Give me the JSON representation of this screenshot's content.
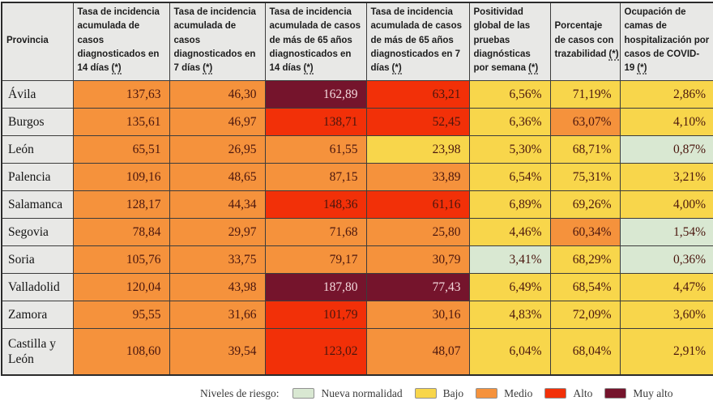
{
  "colors": {
    "nueva": "#d9e8d2",
    "bajo": "#f8d64b",
    "medio": "#f5923c",
    "alto": "#f23008",
    "muy_alto": "#75142c",
    "header_bg": "#e8e8e6",
    "text_dark": "#4a160e",
    "text_light": "#f2d7db"
  },
  "table": {
    "headers": [
      {
        "label": "Provincia",
        "fn": ""
      },
      {
        "label": "Tasa de incidencia acumulada de casos diagnosticados en 14 días",
        "fn": "(*)"
      },
      {
        "label": "Tasa de incidencia acumulada de casos diagnosticados en 7 días",
        "fn": "(*)"
      },
      {
        "label": "Tasa de incidencia acumulada de casos de más de 65 años diagnosticados en 14 días",
        "fn": "(*)"
      },
      {
        "label": "Tasa de incidencia acumulada de casos de más de 65 años diagnosticados en 7 días",
        "fn": "(*)"
      },
      {
        "label": "Positividad global de las pruebas diagnósticas por semana",
        "fn": "(*)"
      },
      {
        "label": "Porcentaje de casos con trazabilidad",
        "fn": "(*)"
      },
      {
        "label": "Ocupación de camas de hospitalización por casos de COVID-19",
        "fn": "(*)"
      }
    ],
    "rows": [
      {
        "province": "Ávila",
        "cells": [
          {
            "value": "137,63",
            "level": "medio"
          },
          {
            "value": "46,30",
            "level": "medio"
          },
          {
            "value": "162,89",
            "level": "muy_alto"
          },
          {
            "value": "63,21",
            "level": "alto"
          },
          {
            "value": "6,56%",
            "level": "bajo"
          },
          {
            "value": "71,19%",
            "level": "bajo"
          },
          {
            "value": "2,86%",
            "level": "bajo"
          }
        ]
      },
      {
        "province": "Burgos",
        "cells": [
          {
            "value": "135,61",
            "level": "medio"
          },
          {
            "value": "46,97",
            "level": "medio"
          },
          {
            "value": "138,71",
            "level": "alto"
          },
          {
            "value": "52,45",
            "level": "alto"
          },
          {
            "value": "6,36%",
            "level": "bajo"
          },
          {
            "value": "63,07%",
            "level": "medio"
          },
          {
            "value": "4,10%",
            "level": "bajo"
          }
        ]
      },
      {
        "province": "León",
        "cells": [
          {
            "value": "65,51",
            "level": "medio"
          },
          {
            "value": "26,95",
            "level": "medio"
          },
          {
            "value": "61,55",
            "level": "medio"
          },
          {
            "value": "23,98",
            "level": "bajo"
          },
          {
            "value": "5,30%",
            "level": "bajo"
          },
          {
            "value": "68,71%",
            "level": "bajo"
          },
          {
            "value": "0,87%",
            "level": "nueva"
          }
        ]
      },
      {
        "province": "Palencia",
        "cells": [
          {
            "value": "109,16",
            "level": "medio"
          },
          {
            "value": "48,65",
            "level": "medio"
          },
          {
            "value": "87,15",
            "level": "medio"
          },
          {
            "value": "33,89",
            "level": "medio"
          },
          {
            "value": "6,54%",
            "level": "bajo"
          },
          {
            "value": "75,31%",
            "level": "bajo"
          },
          {
            "value": "3,21%",
            "level": "bajo"
          }
        ]
      },
      {
        "province": "Salamanca",
        "cells": [
          {
            "value": "128,17",
            "level": "medio"
          },
          {
            "value": "44,34",
            "level": "medio"
          },
          {
            "value": "148,36",
            "level": "alto"
          },
          {
            "value": "61,16",
            "level": "alto"
          },
          {
            "value": "6,89%",
            "level": "bajo"
          },
          {
            "value": "69,26%",
            "level": "bajo"
          },
          {
            "value": "4,00%",
            "level": "bajo"
          }
        ]
      },
      {
        "province": "Segovia",
        "cells": [
          {
            "value": "78,84",
            "level": "medio"
          },
          {
            "value": "29,97",
            "level": "medio"
          },
          {
            "value": "71,68",
            "level": "medio"
          },
          {
            "value": "25,80",
            "level": "medio"
          },
          {
            "value": "4,46%",
            "level": "bajo"
          },
          {
            "value": "60,34%",
            "level": "medio"
          },
          {
            "value": "1,54%",
            "level": "nueva"
          }
        ]
      },
      {
        "province": "Soria",
        "cells": [
          {
            "value": "105,76",
            "level": "medio"
          },
          {
            "value": "33,75",
            "level": "medio"
          },
          {
            "value": "79,17",
            "level": "medio"
          },
          {
            "value": "30,79",
            "level": "medio"
          },
          {
            "value": "3,41%",
            "level": "nueva"
          },
          {
            "value": "68,29%",
            "level": "bajo"
          },
          {
            "value": "0,36%",
            "level": "nueva"
          }
        ]
      },
      {
        "province": "Valladolid",
        "cells": [
          {
            "value": "120,04",
            "level": "medio"
          },
          {
            "value": "43,98",
            "level": "medio"
          },
          {
            "value": "187,80",
            "level": "muy_alto"
          },
          {
            "value": "77,43",
            "level": "muy_alto"
          },
          {
            "value": "6,49%",
            "level": "bajo"
          },
          {
            "value": "68,54%",
            "level": "bajo"
          },
          {
            "value": "4,47%",
            "level": "bajo"
          }
        ]
      },
      {
        "province": "Zamora",
        "cells": [
          {
            "value": "95,55",
            "level": "medio"
          },
          {
            "value": "31,66",
            "level": "medio"
          },
          {
            "value": "101,79",
            "level": "alto"
          },
          {
            "value": "30,16",
            "level": "medio"
          },
          {
            "value": "4,83%",
            "level": "bajo"
          },
          {
            "value": "72,09%",
            "level": "bajo"
          },
          {
            "value": "3,60%",
            "level": "bajo"
          }
        ]
      },
      {
        "province": "Castilla y León",
        "cells": [
          {
            "value": "108,60",
            "level": "medio"
          },
          {
            "value": "39,54",
            "level": "medio"
          },
          {
            "value": "123,02",
            "level": "alto"
          },
          {
            "value": "48,07",
            "level": "medio"
          },
          {
            "value": "6,04%",
            "level": "bajo"
          },
          {
            "value": "68,04%",
            "level": "bajo"
          },
          {
            "value": "2,91%",
            "level": "bajo"
          }
        ]
      }
    ]
  },
  "legend": {
    "title": "Niveles de riesgo:",
    "items": [
      {
        "label": "Nueva normalidad",
        "level": "nueva"
      },
      {
        "label": "Bajo",
        "level": "bajo"
      },
      {
        "label": "Medio",
        "level": "medio"
      },
      {
        "label": "Alto",
        "level": "alto"
      },
      {
        "label": "Muy alto",
        "level": "muy_alto"
      }
    ]
  },
  "chart_data": {
    "type": "table",
    "columns": [
      "Provincia",
      "Tasa de incidencia acumulada de casos diagnosticados en 14 días (*)",
      "Tasa de incidencia acumulada de casos diagnosticados en 7 días (*)",
      "Tasa de incidencia acumulada de casos de más de 65 años diagnosticados en 14 días (*)",
      "Tasa de incidencia acumulada de casos de más de 65 años diagnosticados en 7 días (*)",
      "Positividad global de las pruebas diagnósticas por semana (*)",
      "Porcentaje de casos con trazabilidad (*)",
      "Ocupación de camas de hospitalización por casos de COVID-19 (*)"
    ],
    "rows": [
      [
        "Ávila",
        "137,63",
        "46,30",
        "162,89",
        "63,21",
        "6,56%",
        "71,19%",
        "2,86%"
      ],
      [
        "Burgos",
        "135,61",
        "46,97",
        "138,71",
        "52,45",
        "6,36%",
        "63,07%",
        "4,10%"
      ],
      [
        "León",
        "65,51",
        "26,95",
        "61,55",
        "23,98",
        "5,30%",
        "68,71%",
        "0,87%"
      ],
      [
        "Palencia",
        "109,16",
        "48,65",
        "87,15",
        "33,89",
        "6,54%",
        "75,31%",
        "3,21%"
      ],
      [
        "Salamanca",
        "128,17",
        "44,34",
        "148,36",
        "61,16",
        "6,89%",
        "69,26%",
        "4,00%"
      ],
      [
        "Segovia",
        "78,84",
        "29,97",
        "71,68",
        "25,80",
        "4,46%",
        "60,34%",
        "1,54%"
      ],
      [
        "Soria",
        "105,76",
        "33,75",
        "79,17",
        "30,79",
        "3,41%",
        "68,29%",
        "0,36%"
      ],
      [
        "Valladolid",
        "120,04",
        "43,98",
        "187,80",
        "77,43",
        "6,49%",
        "68,54%",
        "4,47%"
      ],
      [
        "Zamora",
        "95,55",
        "31,66",
        "101,79",
        "30,16",
        "4,83%",
        "72,09%",
        "3,60%"
      ],
      [
        "Castilla y León",
        "108,60",
        "39,54",
        "123,02",
        "48,07",
        "6,04%",
        "68,04%",
        "2,91%"
      ]
    ],
    "legend": [
      "Nueva normalidad",
      "Bajo",
      "Medio",
      "Alto",
      "Muy alto"
    ],
    "risk_color_map": {
      "Nueva normalidad": "#d9e8d2",
      "Bajo": "#f8d64b",
      "Medio": "#f5923c",
      "Alto": "#f23008",
      "Muy alto": "#75142c"
    }
  }
}
